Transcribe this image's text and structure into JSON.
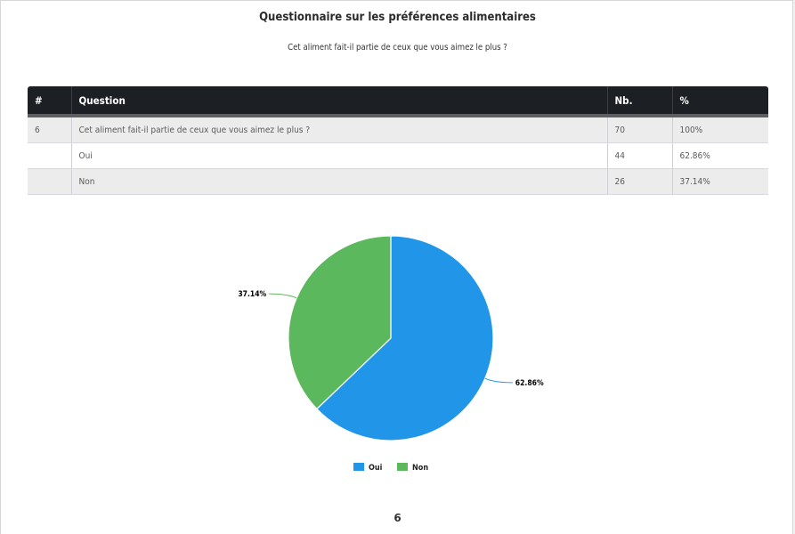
{
  "document": {
    "title": "Questionnaire sur les préférences alimentaires",
    "subtitle": "Cet aliment fait-il partie de ceux que vous aimez le plus ?",
    "page_number": "6"
  },
  "table": {
    "headers": [
      "#",
      "Question",
      "Nb.",
      "%"
    ],
    "rows": [
      [
        "6",
        "Cet aliment fait-il partie de ceux que vous aimez le plus ?",
        "70",
        "100%"
      ],
      [
        "",
        "Oui",
        "44",
        "62.86%"
      ],
      [
        "",
        "Non",
        "26",
        "37.14%"
      ]
    ]
  },
  "chart_data": {
    "type": "pie",
    "categories": [
      "Oui",
      "Non"
    ],
    "values": [
      44,
      26
    ],
    "labels": [
      "62.86%",
      "37.14%"
    ],
    "colors": [
      "#2196e8",
      "#5cb85c"
    ],
    "legend_position": "bottom",
    "title": ""
  }
}
